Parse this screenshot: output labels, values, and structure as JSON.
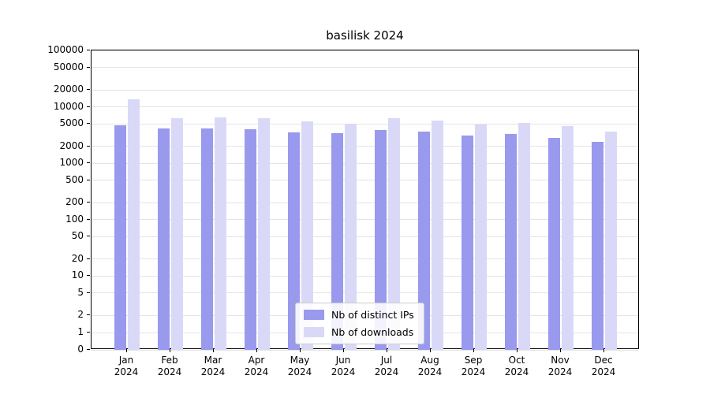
{
  "chart_data": {
    "type": "bar",
    "title": "basilisk 2024",
    "scale": "log",
    "grid": true,
    "legend_position": "lower center",
    "year": "2024",
    "categories": [
      "Jan",
      "Feb",
      "Mar",
      "Apr",
      "May",
      "Jun",
      "Jul",
      "Aug",
      "Sep",
      "Oct",
      "Nov",
      "Dec"
    ],
    "yticks": [
      100000,
      50000,
      20000,
      10000,
      5000,
      2000,
      1000,
      500,
      200,
      100,
      50,
      20,
      10,
      5,
      2,
      1,
      0
    ],
    "ylim": [
      0,
      100000
    ],
    "series": [
      {
        "name": "Nb of distinct IPs",
        "color": "#9999ed",
        "values": [
          4700,
          4200,
          4200,
          4000,
          3500,
          3400,
          3900,
          3600,
          3100,
          3300,
          2800,
          2400
        ]
      },
      {
        "name": "Nb of downloads",
        "color": "#d9d9f7",
        "values": [
          13500,
          6300,
          6500,
          6200,
          5500,
          5100,
          6300,
          5700,
          4800,
          5200,
          4500,
          3700
        ]
      }
    ]
  }
}
